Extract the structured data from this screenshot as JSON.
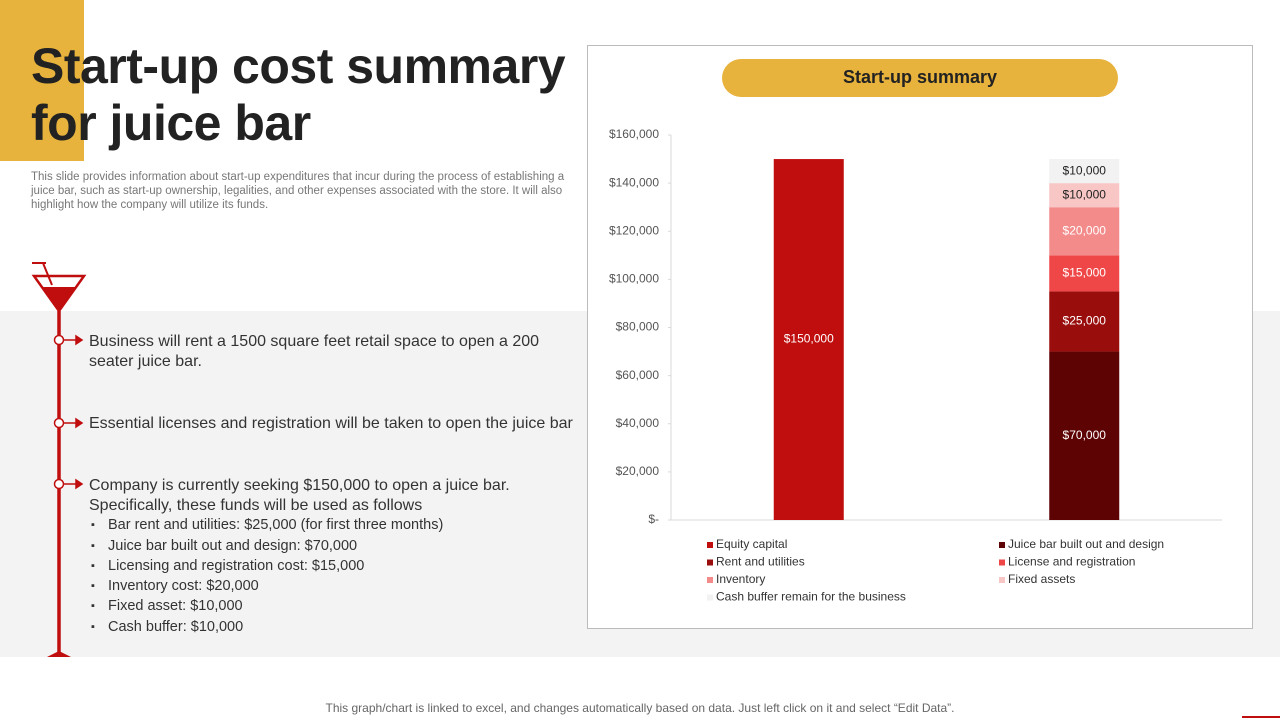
{
  "header": {
    "title": "Start-up cost summary for juice bar",
    "description": "This slide provides information about start-up expenditures that incur during the process of establishing a juice bar, such as start-up ownership, legalities, and other expenses associated with the store. It will also highlight how the company will utilize its funds."
  },
  "points": [
    "Business will rent a 1500 square feet retail space to open a 200 seater juice bar.",
    "Essential licenses and registration will be taken to open the juice bar",
    "Company is currently  seeking $150,000 to open a juice bar. Specifically, these funds will be used as follows"
  ],
  "subpoints": [
    "Bar rent and utilities: $25,000 (for first three months)",
    "Juice bar built out and design: $70,000",
    "Licensing and registration cost: $15,000",
    "Inventory cost: $20,000",
    "Fixed asset: $10,000",
    "Cash buffer: $10,000"
  ],
  "chart_data": {
    "type": "stacked-bar",
    "title": "Start-up summary",
    "categories": [
      null,
      null
    ],
    "series": [
      {
        "name": "Equity capital",
        "color": "#c00d0d",
        "values": [
          150000,
          null
        ],
        "value_labels": [
          "$150,000",
          null
        ]
      },
      {
        "name": "Juice bar built out and design",
        "color": "#5e0303",
        "values": [
          null,
          70000
        ],
        "value_labels": [
          null,
          "$70,000"
        ]
      },
      {
        "name": "Rent and utilities",
        "color": "#9a0d0d",
        "values": [
          null,
          25000
        ],
        "value_labels": [
          null,
          "$25,000"
        ]
      },
      {
        "name": "License and registration",
        "color": "#ef4747",
        "values": [
          null,
          15000
        ],
        "value_labels": [
          null,
          "$15,000"
        ]
      },
      {
        "name": "Inventory",
        "color": "#f38b8b",
        "values": [
          null,
          20000
        ],
        "value_labels": [
          null,
          "$20,000"
        ]
      },
      {
        "name": "Fixed assets",
        "color": "#f9c6c6",
        "values": [
          null,
          10000
        ],
        "value_labels": [
          null,
          "$10,000"
        ]
      },
      {
        "name": "Cash buffer remain for the business",
        "color": "#f2f2f2",
        "values": [
          null,
          10000
        ],
        "value_labels": [
          null,
          "$10,000"
        ]
      }
    ],
    "ylim": [
      0,
      160000
    ],
    "yticks": [
      {
        "value": 0,
        "label": "$-"
      },
      {
        "value": 20000,
        "label": "$20,000"
      },
      {
        "value": 40000,
        "label": "$40,000"
      },
      {
        "value": 60000,
        "label": "$60,000"
      },
      {
        "value": 80000,
        "label": "$80,000"
      },
      {
        "value": 100000,
        "label": "$100,000"
      },
      {
        "value": 120000,
        "label": "$120,000"
      },
      {
        "value": 140000,
        "label": "$140,000"
      },
      {
        "value": 160000,
        "label": "$160,000"
      }
    ],
    "grid": false,
    "legend": "bottom"
  },
  "footer": {
    "note": "This graph/chart is linked to excel,  and changes automatically based on data. Just left click on it and select “Edit Data”."
  }
}
